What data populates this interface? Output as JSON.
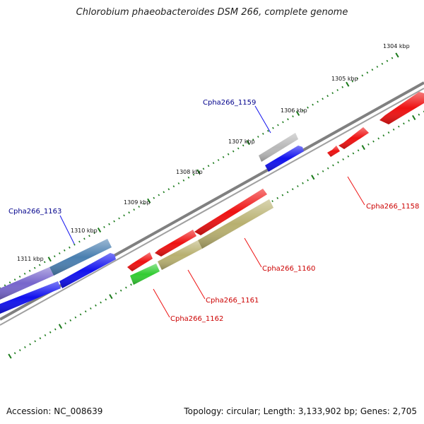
{
  "title": "Chlorobium phaeobacteroides DSM 266, complete genome",
  "accession": "Accession: NC_008639",
  "summary": "Topology: circular; Length: 3,133,902 bp; Genes: 2,705",
  "scale": {
    "labels": [
      "1304 kbp",
      "1305 kbp",
      "1306 kbp",
      "1307 kbp",
      "1308 kbp",
      "1309 kbp",
      "1310 kbp",
      "1311 kbp"
    ]
  },
  "genes": [
    {
      "id": "Cpha266_1158",
      "color": "#cc0000"
    },
    {
      "id": "Cpha266_1159",
      "color": "#00008b"
    },
    {
      "id": "Cpha266_1160",
      "color": "#cc0000"
    },
    {
      "id": "Cpha266_1161",
      "color": "#cc0000"
    },
    {
      "id": "Cpha266_1162",
      "color": "#cc0000"
    },
    {
      "id": "Cpha266_1163",
      "color": "#00008b"
    }
  ],
  "colors": {
    "backbone": "#808080",
    "tick": "#1a7a1a",
    "red": "#ee1111",
    "blue": "#1111ee",
    "grey": "#b8b8b8",
    "olive": "#b8b070",
    "green": "#33cc33",
    "purple": "#7766cc",
    "steel": "#4a7fb0"
  }
}
